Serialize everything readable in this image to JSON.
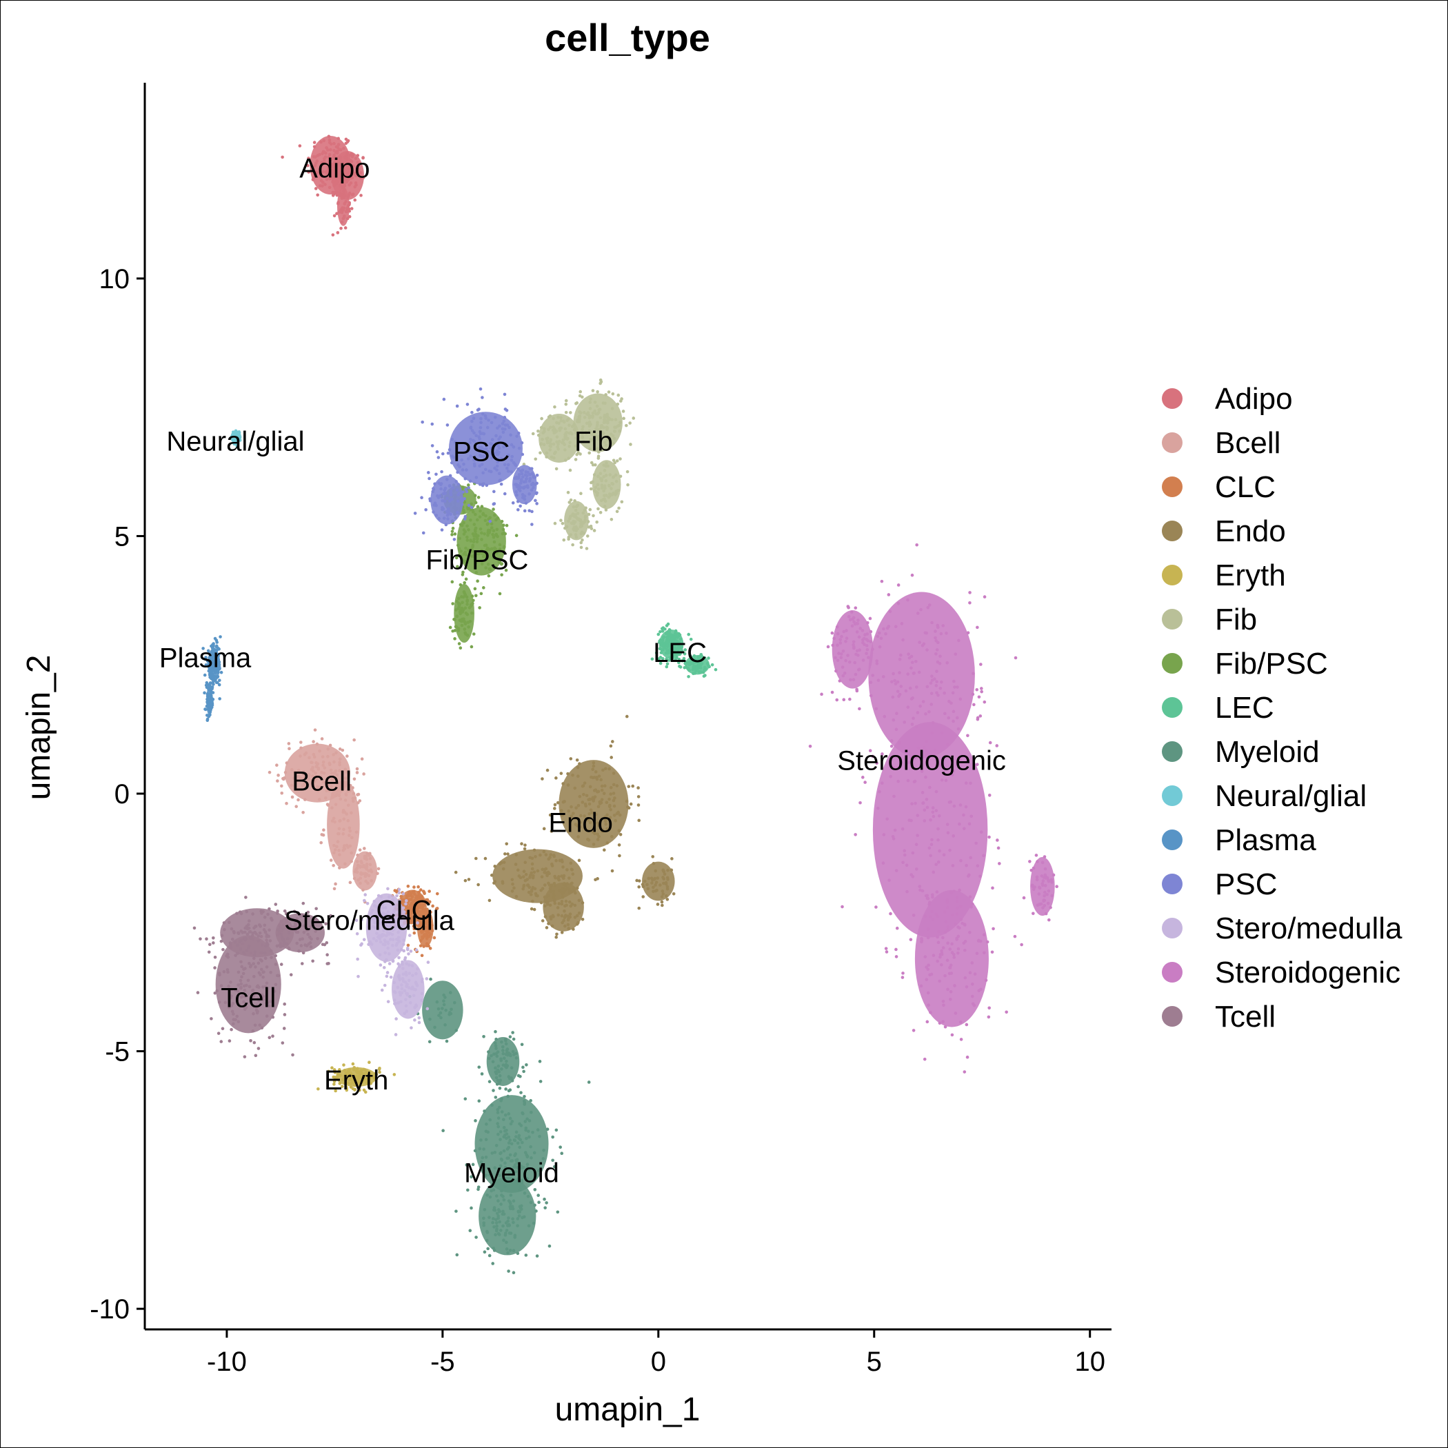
{
  "chart_data": {
    "type": "scatter",
    "title": "cell_type",
    "xlabel": "umapin_1",
    "ylabel": "umapin_2",
    "xlim": [
      -11.9,
      10.5
    ],
    "ylim": [
      -10.4,
      13.8
    ],
    "xticks": [
      -10,
      -5,
      0,
      5,
      10
    ],
    "yticks": [
      -10,
      -5,
      0,
      5,
      10
    ],
    "xtick_labels": [
      "-10",
      "-5",
      "0",
      "5",
      "10"
    ],
    "ytick_labels": [
      "-10",
      "-5",
      "0",
      "5",
      "10"
    ],
    "legend_position": "right",
    "series": [
      {
        "name": "Adipo",
        "color": "#D8727D",
        "label_pos": [
          -7.5,
          12.1
        ],
        "blobs": [
          [
            -7.6,
            12.2,
            0.5,
            0.6,
            0.5
          ],
          [
            -7.2,
            12.0,
            0.4,
            0.5,
            0.3
          ],
          [
            -7.3,
            11.4,
            0.15,
            0.4,
            0.2
          ]
        ]
      },
      {
        "name": "Bcell",
        "color": "#D9A39E",
        "label_pos": [
          -7.8,
          0.2
        ],
        "blobs": [
          [
            -7.9,
            0.4,
            0.8,
            0.6,
            0.5
          ],
          [
            -7.3,
            -0.6,
            0.4,
            0.9,
            0.3
          ],
          [
            -6.8,
            -1.5,
            0.3,
            0.4,
            0.2
          ]
        ]
      },
      {
        "name": "CLC",
        "color": "#D27F4F",
        "label_pos": [
          -5.9,
          -2.3
        ],
        "blobs": [
          [
            -5.7,
            -2.2,
            0.35,
            0.35,
            0.7
          ],
          [
            -5.4,
            -2.6,
            0.2,
            0.4,
            0.3
          ]
        ]
      },
      {
        "name": "Endo",
        "color": "#9A8556",
        "label_pos": [
          -1.8,
          -0.6
        ],
        "blobs": [
          [
            -1.5,
            -0.2,
            0.85,
            0.9,
            0.6
          ],
          [
            -2.8,
            -1.6,
            1.1,
            0.55,
            0.5
          ],
          [
            -2.2,
            -2.2,
            0.5,
            0.5,
            0.3
          ],
          [
            0.0,
            -1.7,
            0.4,
            0.4,
            0.2
          ]
        ]
      },
      {
        "name": "Eryth",
        "color": "#C7B452",
        "label_pos": [
          -7.0,
          -5.6
        ],
        "blobs": [
          [
            -7.0,
            -5.5,
            0.5,
            0.2,
            0.5
          ]
        ]
      },
      {
        "name": "Fib",
        "color": "#B9C098",
        "label_pos": [
          -1.5,
          6.8
        ],
        "blobs": [
          [
            -1.4,
            7.2,
            0.6,
            0.6,
            0.6
          ],
          [
            -2.3,
            6.9,
            0.5,
            0.5,
            0.4
          ],
          [
            -1.2,
            6.0,
            0.35,
            0.5,
            0.3
          ],
          [
            -1.9,
            5.3,
            0.3,
            0.4,
            0.3
          ]
        ]
      },
      {
        "name": "Fib/PSC",
        "color": "#78A44D",
        "label_pos": [
          -4.2,
          4.5
        ],
        "blobs": [
          [
            -4.1,
            4.9,
            0.6,
            0.7,
            0.6
          ],
          [
            -4.5,
            3.5,
            0.25,
            0.6,
            0.3
          ],
          [
            -4.6,
            5.7,
            0.4,
            0.3,
            0.2
          ]
        ]
      },
      {
        "name": "LEC",
        "color": "#5DC496",
        "label_pos": [
          0.5,
          2.7
        ],
        "blobs": [
          [
            0.3,
            2.9,
            0.3,
            0.3,
            0.6
          ],
          [
            0.9,
            2.5,
            0.3,
            0.2,
            0.3
          ]
        ]
      },
      {
        "name": "Myeloid",
        "color": "#5E9581",
        "label_pos": [
          -3.4,
          -7.4
        ],
        "blobs": [
          [
            -3.4,
            -6.8,
            0.9,
            1.0,
            0.6
          ],
          [
            -3.5,
            -8.2,
            0.7,
            0.8,
            0.5
          ],
          [
            -3.6,
            -5.2,
            0.4,
            0.5,
            0.3
          ],
          [
            -5.0,
            -4.2,
            0.5,
            0.6,
            0.1
          ]
        ]
      },
      {
        "name": "Neural/glial",
        "color": "#72CAD6",
        "label_pos": [
          -9.8,
          6.8
        ],
        "blobs": [
          [
            -9.8,
            6.9,
            0.08,
            0.1,
            0.6
          ]
        ]
      },
      {
        "name": "Plasma",
        "color": "#5894C6",
        "label_pos": [
          -10.5,
          2.6
        ],
        "blobs": [
          [
            -10.3,
            2.5,
            0.15,
            0.35,
            0.6
          ],
          [
            -10.4,
            1.8,
            0.08,
            0.3,
            0.3
          ]
        ]
      },
      {
        "name": "PSC",
        "color": "#7E85D4",
        "label_pos": [
          -4.1,
          6.6
        ],
        "blobs": [
          [
            -4.0,
            6.7,
            0.9,
            0.75,
            0.6
          ],
          [
            -4.9,
            5.7,
            0.4,
            0.5,
            0.3
          ],
          [
            -3.1,
            6.0,
            0.3,
            0.4,
            0.3
          ]
        ]
      },
      {
        "name": "Stero/medulla",
        "color": "#C6B5DE",
        "label_pos": [
          -6.7,
          -2.5
        ],
        "blobs": [
          [
            -6.3,
            -2.6,
            0.5,
            0.7,
            0.6
          ],
          [
            -5.8,
            -3.8,
            0.4,
            0.6,
            0.3
          ]
        ]
      },
      {
        "name": "Steroidogenic",
        "color": "#C97DC3",
        "label_pos": [
          6.1,
          0.6
        ],
        "blobs": [
          [
            6.1,
            2.3,
            1.3,
            1.7,
            0.6
          ],
          [
            6.3,
            -0.7,
            1.4,
            2.2,
            0.6
          ],
          [
            6.8,
            -3.2,
            0.9,
            1.4,
            0.5
          ],
          [
            8.9,
            -1.8,
            0.3,
            0.6,
            0.2
          ],
          [
            4.5,
            2.8,
            0.5,
            0.8,
            0.3
          ]
        ]
      },
      {
        "name": "Tcell",
        "color": "#9E7D91",
        "label_pos": [
          -9.5,
          -4.0
        ],
        "blobs": [
          [
            -9.5,
            -3.7,
            0.8,
            1.0,
            0.6
          ],
          [
            -9.3,
            -2.7,
            0.9,
            0.5,
            0.4
          ],
          [
            -8.3,
            -2.7,
            0.6,
            0.4,
            0.3
          ]
        ]
      }
    ]
  }
}
